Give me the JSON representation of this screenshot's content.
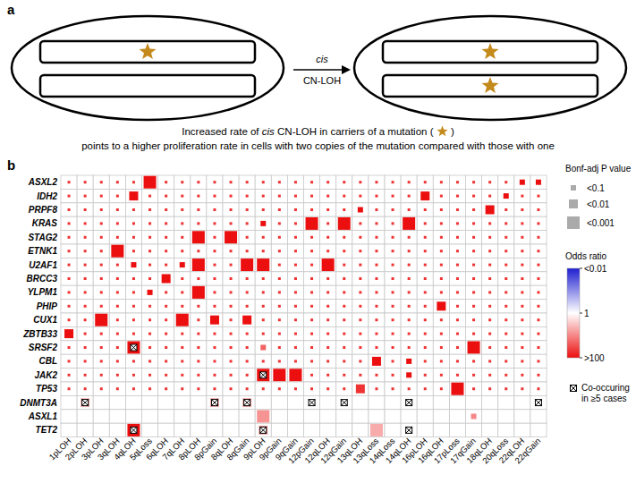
{
  "diagram": {
    "panel_label": "a",
    "arrow_label_italic": "cis",
    "arrow_label": "CN-LOH",
    "caption": {
      "before": "Increased rate of ",
      "italic": "cis",
      "middle": " CN-LOH in carriers of a mutation ( ",
      "after": " )",
      "line2": "points to a higher proliferation rate in cells with two copies of the mutation compared with those with one"
    }
  },
  "chart_data": {
    "type": "heatmap",
    "panel_label": "b",
    "rows": [
      "ASXL2",
      "IDH2",
      "PRPF8",
      "KRAS",
      "STAG2",
      "ETNK1",
      "U2AF1",
      "BRCC3",
      "YLPM1",
      "PHIP",
      "CUX1",
      "ZBTB33",
      "SRSF2",
      "CBL",
      "JAK2",
      "TP53",
      "DNMT3A",
      "ASXL1",
      "TET2"
    ],
    "columns": [
      "1pLOH",
      "2pLOH",
      "3pLOH",
      "3qLOH",
      "4qLOH",
      "5qLoss",
      "6qLOH",
      "7qLOH",
      "8pLOH",
      "8pGain",
      "8qLOH",
      "8qGain",
      "9pLOH",
      "9pGain",
      "9qGain",
      "12pGain",
      "12qLOH",
      "12qGain",
      "13qLOH",
      "13qLoss",
      "14qLoss",
      "14qLOH",
      "16pLOH",
      "16qLOH",
      "17pLoss",
      "17qGain",
      "18qLOH",
      "20qLoss",
      "22qLOH",
      "22qGain"
    ],
    "odds_ratio": [
      [
        50,
        50,
        50,
        50,
        50,
        100,
        50,
        50,
        50,
        50,
        50,
        50,
        50,
        50,
        50,
        50,
        50,
        50,
        50,
        50,
        50,
        50,
        50,
        50,
        50,
        50,
        50,
        50,
        100,
        100
      ],
      [
        50,
        50,
        50,
        50,
        100,
        50,
        50,
        50,
        50,
        50,
        50,
        50,
        50,
        50,
        50,
        50,
        50,
        50,
        50,
        50,
        50,
        50,
        100,
        50,
        50,
        50,
        50,
        100,
        50,
        50
      ],
      [
        50,
        50,
        50,
        50,
        50,
        50,
        50,
        50,
        50,
        50,
        50,
        50,
        50,
        50,
        50,
        50,
        50,
        50,
        100,
        50,
        50,
        50,
        50,
        50,
        50,
        50,
        100,
        50,
        50,
        50
      ],
      [
        50,
        50,
        50,
        50,
        50,
        50,
        50,
        50,
        50,
        50,
        50,
        50,
        100,
        50,
        50,
        100,
        50,
        100,
        50,
        50,
        50,
        100,
        50,
        50,
        50,
        50,
        50,
        50,
        50,
        50
      ],
      [
        50,
        50,
        50,
        50,
        50,
        50,
        50,
        50,
        100,
        50,
        100,
        50,
        50,
        50,
        50,
        50,
        50,
        50,
        50,
        50,
        50,
        50,
        50,
        50,
        50,
        50,
        50,
        50,
        50,
        50
      ],
      [
        50,
        50,
        50,
        100,
        50,
        50,
        50,
        50,
        50,
        50,
        50,
        50,
        50,
        50,
        50,
        50,
        50,
        50,
        50,
        50,
        50,
        50,
        50,
        50,
        50,
        50,
        50,
        50,
        50,
        50
      ],
      [
        50,
        50,
        50,
        50,
        100,
        50,
        50,
        100,
        100,
        50,
        50,
        100,
        100,
        50,
        50,
        50,
        100,
        50,
        50,
        50,
        50,
        50,
        50,
        50,
        50,
        50,
        50,
        50,
        50,
        50
      ],
      [
        50,
        50,
        50,
        50,
        50,
        50,
        100,
        50,
        50,
        50,
        50,
        50,
        50,
        50,
        50,
        50,
        50,
        50,
        50,
        50,
        50,
        50,
        50,
        50,
        50,
        50,
        50,
        50,
        50,
        50
      ],
      [
        50,
        50,
        50,
        50,
        50,
        100,
        50,
        50,
        100,
        50,
        50,
        50,
        50,
        50,
        50,
        50,
        50,
        50,
        50,
        50,
        50,
        50,
        50,
        50,
        50,
        50,
        50,
        50,
        50,
        50
      ],
      [
        50,
        50,
        50,
        50,
        50,
        50,
        50,
        50,
        50,
        50,
        50,
        50,
        50,
        50,
        50,
        50,
        50,
        50,
        50,
        50,
        50,
        50,
        50,
        100,
        50,
        50,
        50,
        50,
        50,
        50
      ],
      [
        50,
        50,
        100,
        50,
        50,
        50,
        50,
        100,
        50,
        100,
        50,
        100,
        50,
        50,
        50,
        50,
        50,
        50,
        50,
        50,
        50,
        50,
        50,
        50,
        50,
        50,
        50,
        50,
        50,
        50
      ],
      [
        100,
        50,
        50,
        50,
        50,
        50,
        50,
        50,
        50,
        50,
        50,
        50,
        50,
        50,
        50,
        50,
        50,
        50,
        50,
        50,
        50,
        50,
        50,
        50,
        50,
        50,
        50,
        50,
        50,
        50
      ],
      [
        50,
        50,
        50,
        50,
        100,
        50,
        50,
        50,
        50,
        50,
        50,
        50,
        20,
        50,
        50,
        50,
        50,
        50,
        50,
        50,
        50,
        50,
        50,
        50,
        50,
        100,
        50,
        50,
        50,
        50
      ],
      [
        50,
        50,
        50,
        50,
        50,
        50,
        50,
        50,
        50,
        50,
        50,
        50,
        50,
        50,
        50,
        50,
        50,
        50,
        50,
        100,
        50,
        100,
        50,
        50,
        50,
        50,
        50,
        50,
        50,
        50
      ],
      [
        50,
        50,
        50,
        50,
        50,
        50,
        50,
        50,
        50,
        50,
        50,
        50,
        100,
        100,
        100,
        50,
        50,
        50,
        50,
        50,
        50,
        100,
        50,
        50,
        50,
        50,
        50,
        50,
        50,
        50
      ],
      [
        50,
        50,
        50,
        50,
        50,
        50,
        50,
        50,
        50,
        50,
        50,
        50,
        50,
        50,
        50,
        50,
        50,
        50,
        50,
        50,
        50,
        50,
        50,
        50,
        100,
        50,
        50,
        50,
        50,
        50
      ],
      [
        1,
        4,
        1,
        1,
        1,
        1,
        1,
        1,
        1,
        5,
        1,
        5,
        1,
        1,
        1,
        1,
        1,
        1,
        1,
        1,
        1,
        1,
        1,
        1,
        1,
        1,
        1,
        1,
        1,
        1
      ],
      [
        1,
        1,
        1,
        1,
        1,
        1,
        1,
        1,
        1,
        1,
        1,
        1,
        8,
        1,
        1,
        1,
        1,
        1,
        1,
        1,
        1,
        1,
        1,
        1,
        1,
        10,
        1,
        1,
        1,
        1
      ],
      [
        1,
        1,
        1,
        1,
        100,
        1,
        1,
        1,
        1,
        1,
        1,
        1,
        6,
        1,
        1,
        1,
        1,
        1,
        1,
        5,
        1,
        1,
        1,
        1,
        1,
        1,
        1,
        1,
        1,
        1
      ]
    ],
    "p_adj": [
      [
        1,
        1,
        1,
        1,
        1,
        0.0005,
        1,
        1,
        1,
        1,
        1,
        1,
        1,
        1,
        1,
        1,
        1,
        1,
        1,
        1,
        1,
        1,
        1,
        1,
        1,
        1,
        1,
        1,
        0.05,
        0.05
      ],
      [
        1,
        1,
        1,
        1,
        0.005,
        1,
        1,
        1,
        1,
        1,
        1,
        1,
        1,
        1,
        1,
        1,
        1,
        1,
        1,
        1,
        1,
        1,
        0.005,
        1,
        1,
        1,
        1,
        0.05,
        1,
        1
      ],
      [
        1,
        1,
        1,
        1,
        1,
        1,
        1,
        1,
        1,
        1,
        1,
        1,
        1,
        1,
        1,
        1,
        1,
        1,
        0.05,
        1,
        1,
        1,
        1,
        1,
        1,
        1,
        0.005,
        1,
        1,
        1
      ],
      [
        1,
        1,
        1,
        1,
        1,
        1,
        1,
        1,
        1,
        1,
        1,
        1,
        0.05,
        1,
        1,
        0.0005,
        1,
        0.0005,
        1,
        1,
        1,
        0.0005,
        1,
        1,
        1,
        1,
        1,
        1,
        1,
        1
      ],
      [
        1,
        1,
        1,
        1,
        1,
        1,
        1,
        1,
        0.0005,
        1,
        0.0005,
        1,
        1,
        1,
        1,
        1,
        1,
        1,
        1,
        1,
        1,
        1,
        1,
        1,
        1,
        1,
        1,
        1,
        1,
        1
      ],
      [
        1,
        1,
        1,
        0.0005,
        1,
        1,
        1,
        1,
        1,
        1,
        1,
        1,
        1,
        1,
        1,
        1,
        1,
        1,
        1,
        1,
        1,
        1,
        1,
        1,
        1,
        1,
        1,
        1,
        1,
        1
      ],
      [
        1,
        1,
        1,
        1,
        0.05,
        1,
        1,
        0.05,
        0.0005,
        1,
        1,
        0.0005,
        0.0005,
        1,
        1,
        1,
        0.0005,
        1,
        1,
        1,
        1,
        1,
        1,
        1,
        1,
        1,
        1,
        1,
        1,
        1
      ],
      [
        1,
        1,
        1,
        1,
        1,
        1,
        0.005,
        1,
        1,
        1,
        1,
        1,
        1,
        1,
        1,
        1,
        1,
        1,
        1,
        1,
        1,
        1,
        1,
        1,
        1,
        1,
        1,
        1,
        1,
        1
      ],
      [
        1,
        1,
        1,
        1,
        1,
        0.05,
        1,
        1,
        0.0005,
        1,
        1,
        1,
        1,
        1,
        1,
        1,
        1,
        1,
        1,
        1,
        1,
        1,
        1,
        1,
        1,
        1,
        1,
        1,
        1,
        1
      ],
      [
        1,
        1,
        1,
        1,
        1,
        1,
        1,
        1,
        1,
        1,
        1,
        1,
        1,
        1,
        1,
        1,
        1,
        1,
        1,
        1,
        1,
        1,
        1,
        0.005,
        1,
        1,
        1,
        1,
        1,
        1
      ],
      [
        1,
        1,
        0.0005,
        1,
        1,
        1,
        1,
        0.0005,
        1,
        0.005,
        1,
        0.005,
        1,
        1,
        1,
        1,
        1,
        1,
        1,
        1,
        1,
        1,
        1,
        1,
        1,
        1,
        1,
        1,
        1,
        1
      ],
      [
        0.005,
        1,
        1,
        1,
        1,
        1,
        1,
        1,
        1,
        1,
        1,
        1,
        1,
        1,
        1,
        1,
        1,
        1,
        1,
        1,
        1,
        1,
        1,
        1,
        1,
        1,
        1,
        1,
        1,
        1
      ],
      [
        1,
        1,
        1,
        1,
        0.0005,
        1,
        1,
        1,
        1,
        1,
        1,
        1,
        0.05,
        1,
        1,
        1,
        1,
        1,
        1,
        1,
        1,
        1,
        1,
        1,
        1,
        0.0005,
        1,
        1,
        1,
        1
      ],
      [
        1,
        1,
        1,
        1,
        1,
        1,
        1,
        1,
        1,
        1,
        1,
        1,
        1,
        1,
        1,
        1,
        1,
        1,
        1,
        0.005,
        1,
        0.05,
        1,
        1,
        1,
        1,
        1,
        1,
        1,
        1
      ],
      [
        1,
        1,
        1,
        1,
        1,
        1,
        1,
        1,
        1,
        1,
        1,
        1,
        0.0005,
        0.0005,
        0.0005,
        1,
        1,
        1,
        1,
        1,
        1,
        0.05,
        1,
        1,
        1,
        1,
        1,
        1,
        1,
        1
      ],
      [
        1,
        1,
        1,
        1,
        1,
        1,
        1,
        1,
        1,
        1,
        1,
        1,
        1,
        1,
        1,
        1,
        1,
        1,
        0.005,
        1,
        1,
        1,
        1,
        1,
        0.0005,
        1,
        1,
        1,
        1,
        1
      ],
      [
        1,
        0.005,
        1,
        1,
        1,
        1,
        1,
        1,
        1,
        0.005,
        1,
        0.005,
        1,
        1,
        1,
        1,
        1,
        1,
        1,
        1,
        1,
        1,
        1,
        1,
        1,
        1,
        1,
        1,
        1,
        1
      ],
      [
        1,
        1,
        1,
        1,
        1,
        1,
        1,
        1,
        1,
        1,
        1,
        1,
        0.0005,
        1,
        1,
        1,
        1,
        1,
        1,
        1,
        1,
        1,
        1,
        1,
        1,
        0.05,
        1,
        1,
        1,
        1
      ],
      [
        1,
        1,
        1,
        1,
        0.0005,
        1,
        1,
        1,
        1,
        1,
        1,
        1,
        0.005,
        1,
        1,
        1,
        1,
        1,
        1,
        0.0005,
        1,
        1,
        1,
        1,
        1,
        1,
        1,
        1,
        1,
        1
      ]
    ],
    "cooccurring": [
      {
        "row": "SRSF2",
        "column": "4qLOH"
      },
      {
        "row": "JAK2",
        "column": "9pLOH"
      },
      {
        "row": "DNMT3A",
        "column": "2pLOH"
      },
      {
        "row": "DNMT3A",
        "column": "8pGain"
      },
      {
        "row": "DNMT3A",
        "column": "8qGain"
      },
      {
        "row": "DNMT3A",
        "column": "12pGain"
      },
      {
        "row": "DNMT3A",
        "column": "12qGain"
      },
      {
        "row": "DNMT3A",
        "column": "14qLOH"
      },
      {
        "row": "DNMT3A",
        "column": "22qGain"
      },
      {
        "row": "TET2",
        "column": "4qLOH"
      },
      {
        "row": "TET2",
        "column": "9pLOH"
      },
      {
        "row": "TET2",
        "column": "14qLOH"
      }
    ],
    "cooccurring_label": "Co-occuring in ≥5 cases",
    "size_legend": {
      "title": "Bonf-adj P value",
      "ticks": [
        {
          "value": 0.1,
          "label": "<0.1"
        },
        {
          "value": 0.01,
          "label": "<0.01"
        },
        {
          "value": 0.001,
          "label": "<0.001"
        }
      ]
    },
    "colorbar": {
      "title": "Odds ratio",
      "log": true,
      "lim": [
        0.01,
        100
      ],
      "ticks": [
        {
          "value": 0.01,
          "label": "<0.01"
        },
        1,
        {
          "value": 100,
          "label": ">100"
        }
      ],
      "colors": [
        "#1f1fd1",
        "#ffffff",
        "#ec0f0f"
      ]
    }
  }
}
